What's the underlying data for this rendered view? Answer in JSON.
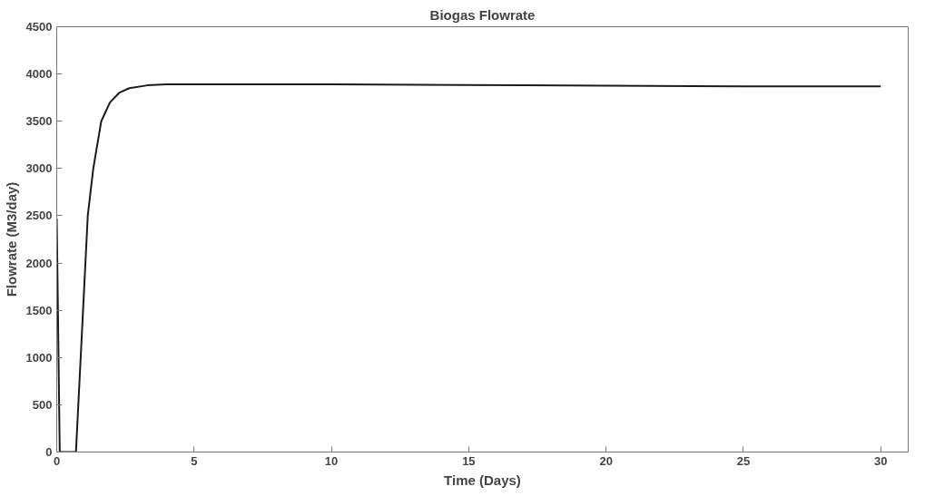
{
  "chart_data": {
    "type": "line",
    "title": "Biogas Flowrate",
    "xlabel": "Time (Days)",
    "ylabel": "Flowrate (M3/day)",
    "x": [
      0,
      0.11,
      0.7,
      0.82,
      0.95,
      1.13,
      1.33,
      1.62,
      1.94,
      2.27,
      2.64,
      3.3,
      4,
      10,
      17,
      25,
      30
    ],
    "series": [
      {
        "color": "#1a1a1a",
        "values": [
          2470,
          0,
          0,
          700,
          1450,
          2500,
          3000,
          3500,
          3700,
          3800,
          3850,
          3880,
          3890,
          3890,
          3880,
          3870,
          3870
        ]
      }
    ],
    "xlim": [
      0,
      31
    ],
    "ylim": [
      0,
      4500
    ],
    "xticks": [
      0,
      5,
      10,
      15,
      20,
      25,
      30
    ],
    "yticks": [
      0,
      500,
      1000,
      1500,
      2000,
      2500,
      3000,
      3500,
      4000,
      4500
    ],
    "grid": false,
    "marker": "none",
    "line_style": "solid"
  }
}
